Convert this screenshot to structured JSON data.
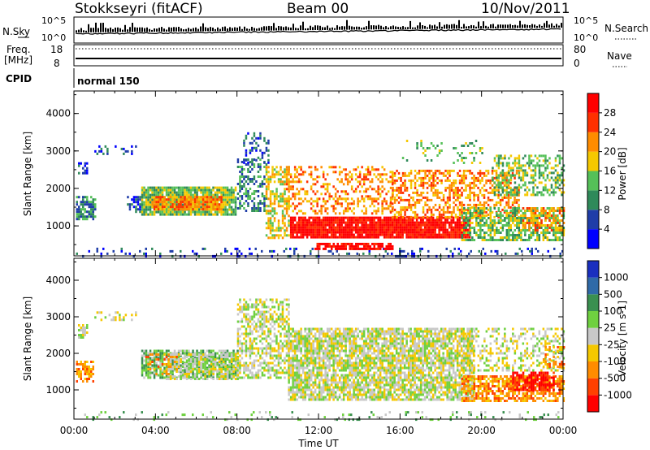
{
  "header": {
    "station": "Stokkseyri (fitACF)",
    "beam": "Beam 00",
    "date": "10/Nov/2011"
  },
  "top_panels": {
    "nsky_label": "N.Sky",
    "nsearch_label": "N.Search",
    "nsky_ticks": [
      "10^5",
      "10^0"
    ],
    "nsearch_ticks": [
      "10^5",
      "10^0"
    ],
    "freq_label": "Freq.",
    "freq_unit": "[MHz]",
    "freq_ticks": [
      "18",
      "8"
    ],
    "nave_label": "Nave",
    "nave_ticks": [
      "80",
      "0"
    ],
    "cpid_label": "CPID",
    "cpid_value": "normal 150"
  },
  "chart_data": [
    {
      "type": "heatmap",
      "name": "power",
      "ylabel": "Slant Range [km]",
      "yticks": [
        "1000",
        "2000",
        "3000",
        "4000"
      ],
      "ylim": [
        200,
        4600
      ],
      "xlim": [
        0,
        24
      ],
      "colorbar_label": "Power [dB]",
      "colorbar_ticks": [
        "4",
        "8",
        "12",
        "16",
        "20",
        "24",
        "28"
      ],
      "colors": [
        "#0000ff",
        "#1f3da8",
        "#2f8a5a",
        "#55c058",
        "#f5c800",
        "#ff8c00",
        "#ff3000",
        "#ff0000"
      ],
      "regions": [
        {
          "x0": 0.0,
          "x1": 24.0,
          "r0": 200,
          "r1": 420,
          "level": 1,
          "density": 0.18
        },
        {
          "x0": 0.1,
          "x1": 1.0,
          "r0": 1200,
          "r1": 1800,
          "level": 2,
          "density": 0.7
        },
        {
          "x0": 0.2,
          "x1": 0.6,
          "r0": 2400,
          "r1": 2700,
          "level": 1,
          "density": 0.6
        },
        {
          "x0": 1.0,
          "x1": 3.0,
          "r0": 2900,
          "r1": 3150,
          "level": 1,
          "density": 0.3
        },
        {
          "x0": 2.6,
          "x1": 3.3,
          "r0": 1400,
          "r1": 1800,
          "level": 1,
          "density": 0.5
        },
        {
          "x0": 3.3,
          "x1": 7.9,
          "r0": 1300,
          "r1": 2050,
          "level": 3,
          "density": 0.9
        },
        {
          "x0": 3.8,
          "x1": 7.2,
          "r0": 1450,
          "r1": 1800,
          "level": 5,
          "density": 0.85
        },
        {
          "x0": 8.0,
          "x1": 9.4,
          "r0": 1400,
          "r1": 2800,
          "level": 2,
          "density": 0.45
        },
        {
          "x0": 8.3,
          "x1": 9.5,
          "r0": 2700,
          "r1": 3500,
          "level": 1,
          "density": 0.3
        },
        {
          "x0": 9.4,
          "x1": 10.5,
          "r0": 700,
          "r1": 2600,
          "level": 4,
          "density": 0.55
        },
        {
          "x0": 10.4,
          "x1": 15.6,
          "r0": 1300,
          "r1": 2600,
          "level": 5,
          "density": 0.35
        },
        {
          "x0": 10.6,
          "x1": 19.4,
          "r0": 700,
          "r1": 1250,
          "level": 7,
          "density": 0.92
        },
        {
          "x0": 11.8,
          "x1": 15.6,
          "r0": 400,
          "r1": 550,
          "level": 7,
          "density": 0.8
        },
        {
          "x0": 15.5,
          "x1": 21.8,
          "r0": 1200,
          "r1": 2500,
          "level": 5,
          "density": 0.5
        },
        {
          "x0": 19.0,
          "x1": 24.0,
          "r0": 600,
          "r1": 1500,
          "level": 3,
          "density": 0.6
        },
        {
          "x0": 20.5,
          "x1": 24.0,
          "r0": 1800,
          "r1": 2900,
          "level": 3,
          "density": 0.45
        },
        {
          "x0": 22.0,
          "x1": 24.0,
          "r0": 900,
          "r1": 1500,
          "level": 5,
          "density": 0.5
        },
        {
          "x0": 16.0,
          "x1": 20.0,
          "r0": 2700,
          "r1": 3300,
          "level": 3,
          "density": 0.15
        }
      ]
    },
    {
      "type": "heatmap",
      "name": "velocity",
      "ylabel": "Slant Range [km]",
      "yticks": [
        "1000",
        "2000",
        "3000",
        "4000"
      ],
      "ylim": [
        200,
        4600
      ],
      "xlim": [
        0,
        24
      ],
      "xlabel": "Time UT",
      "xticks": [
        "00:00",
        "04:00",
        "08:00",
        "12:00",
        "16:00",
        "20:00",
        "00:00"
      ],
      "colorbar_label": "Velocity [m s-1]",
      "colorbar_ticks": [
        "1000",
        "500",
        "100",
        "25",
        "-25",
        "-100",
        "-500",
        "-1000"
      ],
      "colors": [
        "#1a2fbf",
        "#2f6aa8",
        "#3a9050",
        "#6fd040",
        "#c8c8c8",
        "#f5c800",
        "#ff8c00",
        "#ff4000",
        "#ff0000"
      ],
      "regions": [
        {
          "x0": 0.0,
          "x1": 24.0,
          "r0": 200,
          "r1": 420,
          "level": 3,
          "density": 0.12
        },
        {
          "x0": 0.1,
          "x1": 0.9,
          "r0": 1200,
          "r1": 1800,
          "level": 6,
          "density": 0.7
        },
        {
          "x0": 0.2,
          "x1": 0.6,
          "r0": 2400,
          "r1": 2800,
          "level": 4,
          "density": 0.6
        },
        {
          "x0": 1.0,
          "x1": 3.0,
          "r0": 2900,
          "r1": 3150,
          "level": 4,
          "density": 0.3
        },
        {
          "x0": 3.3,
          "x1": 8.0,
          "r0": 1300,
          "r1": 2100,
          "level": 3,
          "density": 0.8
        },
        {
          "x0": 4.5,
          "x1": 8.0,
          "r0": 1300,
          "r1": 2000,
          "level": 4,
          "density": 0.55
        },
        {
          "x0": 3.5,
          "x1": 5.0,
          "r0": 1400,
          "r1": 2000,
          "level": 6,
          "density": 0.35
        },
        {
          "x0": 8.0,
          "x1": 10.5,
          "r0": 1300,
          "r1": 3500,
          "level": 4,
          "density": 0.55
        },
        {
          "x0": 10.5,
          "x1": 19.6,
          "r0": 700,
          "r1": 2700,
          "level": 4,
          "density": 0.8
        },
        {
          "x0": 19.0,
          "x1": 24.0,
          "r0": 700,
          "r1": 1400,
          "level": 6,
          "density": 0.7
        },
        {
          "x0": 21.5,
          "x1": 23.5,
          "r0": 1000,
          "r1": 1500,
          "level": 8,
          "density": 0.7
        },
        {
          "x0": 19.0,
          "x1": 24.0,
          "r0": 1500,
          "r1": 2700,
          "level": 4,
          "density": 0.35
        },
        {
          "x0": 23.0,
          "x1": 24.0,
          "r0": 1600,
          "r1": 2200,
          "level": 6,
          "density": 0.4
        }
      ]
    }
  ]
}
